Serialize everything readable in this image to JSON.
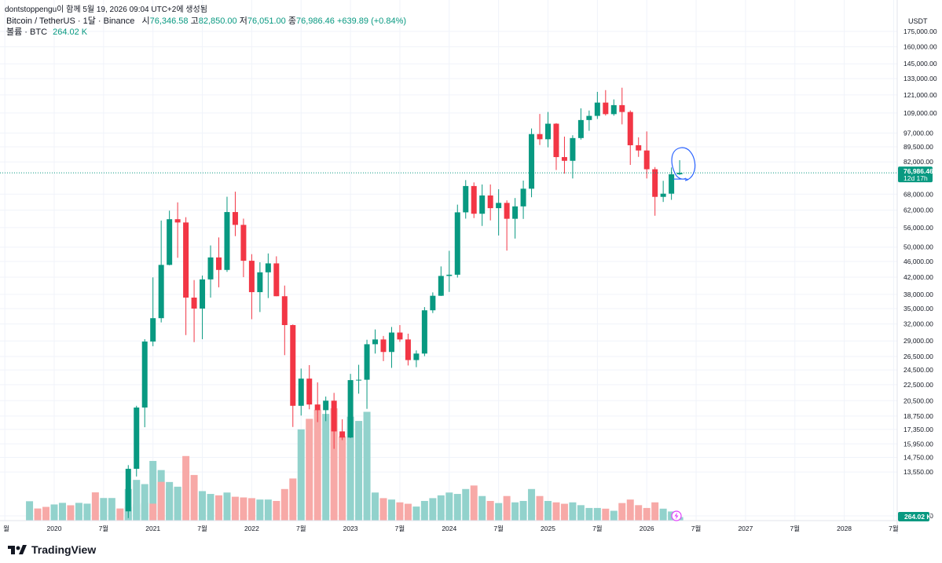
{
  "header": {
    "published": "dontstoppengu이 함께 5월 19, 2026 09:04 UTC+2에 생성됨",
    "symbol": "Bitcoin / TetherUS · 1달 · Binance",
    "o_label": "시",
    "o": "76,346.58",
    "h_label": "고",
    "h": "82,850.00",
    "l_label": "저",
    "l": "76,051.00",
    "c_label": "종",
    "c": "76,986.46",
    "change": "+639.89 (+0.84%)",
    "volume_label": "볼륨 · BTC",
    "volume_value": "264.02 K"
  },
  "price_axis": {
    "currency": "USDT",
    "current_price": "76,986.46",
    "countdown": "12d 17h",
    "volume_tag": "264.02 K"
  },
  "footer": {
    "brand": "TradingView"
  },
  "colors": {
    "up": "#089981",
    "down": "#f23645",
    "up_vol": "#92d2cc",
    "down_vol": "#f7a9a7",
    "annotation": "#2962ff"
  },
  "chart_data": {
    "type": "candlestick",
    "scale": "log",
    "y_ticks": [
      10500,
      13550,
      14750,
      15950,
      17350,
      18750,
      20500,
      22500,
      24500,
      26500,
      29000,
      32000,
      35000,
      38000,
      42000,
      46000,
      50000,
      56000,
      62000,
      68000,
      76986.46,
      82000,
      89500,
      97000,
      109000,
      121000,
      133000,
      145000,
      160000,
      175000
    ],
    "y_tick_labels": [
      "10,500.00",
      "13,550.00",
      "14,750.00",
      "15,950.00",
      "17,350.00",
      "18,750.00",
      "20,500.00",
      "22,500.00",
      "24,500.00",
      "26,500.00",
      "29,000.00",
      "32,000.00",
      "35,000.00",
      "38,000.00",
      "42,000.00",
      "46,000.00",
      "50,000.00",
      "56,000.00",
      "62,000.00",
      "68,000.00",
      "",
      "82,000.00",
      "89,500.00",
      "97,000.00",
      "109,000.00",
      "121,000.00",
      "133,000.00",
      "145,000.00",
      "160,000.00",
      "175,000.00"
    ],
    "x_labels": [
      {
        "label": "월",
        "date": "2019-07"
      },
      {
        "label": "2020",
        "date": "2020-01"
      },
      {
        "label": "7월",
        "date": "2020-07"
      },
      {
        "label": "2021",
        "date": "2021-01"
      },
      {
        "label": "7월",
        "date": "2021-07"
      },
      {
        "label": "2022",
        "date": "2022-01"
      },
      {
        "label": "7월",
        "date": "2022-07"
      },
      {
        "label": "2023",
        "date": "2023-01"
      },
      {
        "label": "7월",
        "date": "2023-07"
      },
      {
        "label": "2024",
        "date": "2024-01"
      },
      {
        "label": "7월",
        "date": "2024-07"
      },
      {
        "label": "2025",
        "date": "2025-01"
      },
      {
        "label": "7월",
        "date": "2025-07"
      },
      {
        "label": "2026",
        "date": "2026-01"
      },
      {
        "label": "7월",
        "date": "2026-07"
      },
      {
        "label": "2027",
        "date": "2027-01"
      },
      {
        "label": "7월",
        "date": "2027-07"
      },
      {
        "label": "2028",
        "date": "2028-01"
      },
      {
        "label": "7월",
        "date": "2028-07"
      }
    ],
    "candles": [
      {
        "d": "2020-10",
        "o": 10780,
        "h": 14100,
        "l": 10370,
        "c": 13800,
        "v": 0.45
      },
      {
        "d": "2020-11",
        "o": 13800,
        "h": 19900,
        "l": 13200,
        "c": 19700,
        "v": 0.58
      },
      {
        "d": "2020-12",
        "o": 19700,
        "h": 29300,
        "l": 17570,
        "c": 28900,
        "v": 0.52
      },
      {
        "d": "2021-01",
        "o": 28900,
        "h": 41950,
        "l": 28130,
        "c": 33100,
        "v": 0.85
      },
      {
        "d": "2021-02",
        "o": 33100,
        "h": 58350,
        "l": 32300,
        "c": 45100,
        "v": 0.72
      },
      {
        "d": "2021-03",
        "o": 45100,
        "h": 61800,
        "l": 45000,
        "c": 58800,
        "v": 0.55
      },
      {
        "d": "2021-04",
        "o": 58800,
        "h": 64850,
        "l": 47000,
        "c": 57700,
        "v": 0.48
      },
      {
        "d": "2021-05",
        "o": 57700,
        "h": 59500,
        "l": 30000,
        "c": 37300,
        "v": 0.92
      },
      {
        "d": "2021-06",
        "o": 37300,
        "h": 41300,
        "l": 28800,
        "c": 35000,
        "v": 0.65
      },
      {
        "d": "2021-07",
        "o": 35000,
        "h": 42400,
        "l": 29300,
        "c": 41460,
        "v": 0.42
      },
      {
        "d": "2021-08",
        "o": 41460,
        "h": 50500,
        "l": 37300,
        "c": 47100,
        "v": 0.38
      },
      {
        "d": "2021-09",
        "o": 47100,
        "h": 52900,
        "l": 39600,
        "c": 43800,
        "v": 0.36
      },
      {
        "d": "2021-10",
        "o": 43800,
        "h": 67000,
        "l": 43300,
        "c": 61300,
        "v": 0.4
      },
      {
        "d": "2021-11",
        "o": 61300,
        "h": 69000,
        "l": 53300,
        "c": 56900,
        "v": 0.34
      },
      {
        "d": "2021-12",
        "o": 56900,
        "h": 59000,
        "l": 42000,
        "c": 46200,
        "v": 0.33
      },
      {
        "d": "2022-01",
        "o": 46200,
        "h": 48000,
        "l": 32900,
        "c": 38500,
        "v": 0.32
      },
      {
        "d": "2022-02",
        "o": 38500,
        "h": 45800,
        "l": 34300,
        "c": 43200,
        "v": 0.3
      },
      {
        "d": "2022-03",
        "o": 43200,
        "h": 48200,
        "l": 37200,
        "c": 45500,
        "v": 0.3
      },
      {
        "d": "2022-04",
        "o": 45500,
        "h": 47400,
        "l": 37600,
        "c": 37600,
        "v": 0.28
      },
      {
        "d": "2022-05",
        "o": 37600,
        "h": 40000,
        "l": 26700,
        "c": 31800,
        "v": 0.45
      },
      {
        "d": "2022-06",
        "o": 31800,
        "h": 31900,
        "l": 17600,
        "c": 19900,
        "v": 0.6
      },
      {
        "d": "2022-07",
        "o": 19900,
        "h": 24700,
        "l": 18800,
        "c": 23300,
        "v": 1.3
      },
      {
        "d": "2022-08",
        "o": 23300,
        "h": 25200,
        "l": 19500,
        "c": 20050,
        "v": 1.45
      },
      {
        "d": "2022-09",
        "o": 20050,
        "h": 22800,
        "l": 18100,
        "c": 19400,
        "v": 1.58
      },
      {
        "d": "2022-10",
        "o": 19400,
        "h": 21000,
        "l": 18200,
        "c": 20500,
        "v": 1.52
      },
      {
        "d": "2022-11",
        "o": 20500,
        "h": 21450,
        "l": 15500,
        "c": 17150,
        "v": 1.6
      },
      {
        "d": "2022-12",
        "o": 17150,
        "h": 18400,
        "l": 16300,
        "c": 16550,
        "v": 1.2
      },
      {
        "d": "2023-01",
        "o": 16550,
        "h": 23950,
        "l": 16500,
        "c": 23100,
        "v": 1.48
      },
      {
        "d": "2023-02",
        "o": 23100,
        "h": 25250,
        "l": 21350,
        "c": 23150,
        "v": 1.42
      },
      {
        "d": "2023-03",
        "o": 23150,
        "h": 29200,
        "l": 19550,
        "c": 28450,
        "v": 1.55
      },
      {
        "d": "2023-04",
        "o": 28450,
        "h": 31000,
        "l": 26950,
        "c": 29250,
        "v": 0.4
      },
      {
        "d": "2023-05",
        "o": 29250,
        "h": 29850,
        "l": 25800,
        "c": 27200,
        "v": 0.32
      },
      {
        "d": "2023-06",
        "o": 27200,
        "h": 31450,
        "l": 24800,
        "c": 30450,
        "v": 0.3
      },
      {
        "d": "2023-07",
        "o": 30450,
        "h": 31800,
        "l": 28850,
        "c": 29250,
        "v": 0.26
      },
      {
        "d": "2023-08",
        "o": 29250,
        "h": 30250,
        "l": 25150,
        "c": 25950,
        "v": 0.24
      },
      {
        "d": "2023-09",
        "o": 25950,
        "h": 27450,
        "l": 24900,
        "c": 26950,
        "v": 0.2
      },
      {
        "d": "2023-10",
        "o": 26950,
        "h": 35300,
        "l": 26550,
        "c": 34650,
        "v": 0.28
      },
      {
        "d": "2023-11",
        "o": 34650,
        "h": 38450,
        "l": 34100,
        "c": 37700,
        "v": 0.32
      },
      {
        "d": "2023-12",
        "o": 37700,
        "h": 44700,
        "l": 37650,
        "c": 42300,
        "v": 0.36
      },
      {
        "d": "2024-01",
        "o": 42300,
        "h": 48950,
        "l": 38550,
        "c": 42600,
        "v": 0.4
      },
      {
        "d": "2024-02",
        "o": 42600,
        "h": 64000,
        "l": 41900,
        "c": 61200,
        "v": 0.38
      },
      {
        "d": "2024-03",
        "o": 61200,
        "h": 73800,
        "l": 59000,
        "c": 71300,
        "v": 0.45
      },
      {
        "d": "2024-04",
        "o": 71300,
        "h": 72800,
        "l": 59200,
        "c": 60700,
        "v": 0.5
      },
      {
        "d": "2024-05",
        "o": 60700,
        "h": 71950,
        "l": 56550,
        "c": 67500,
        "v": 0.35
      },
      {
        "d": "2024-06",
        "o": 67500,
        "h": 71950,
        "l": 58400,
        "c": 62700,
        "v": 0.28
      },
      {
        "d": "2024-07",
        "o": 62700,
        "h": 70000,
        "l": 53500,
        "c": 64650,
        "v": 0.25
      },
      {
        "d": "2024-08",
        "o": 64650,
        "h": 65600,
        "l": 49000,
        "c": 58950,
        "v": 0.35
      },
      {
        "d": "2024-09",
        "o": 58950,
        "h": 66500,
        "l": 52550,
        "c": 63350,
        "v": 0.26
      },
      {
        "d": "2024-10",
        "o": 63350,
        "h": 73600,
        "l": 58900,
        "c": 70200,
        "v": 0.28
      },
      {
        "d": "2024-11",
        "o": 70200,
        "h": 99600,
        "l": 66800,
        "c": 96400,
        "v": 0.45
      },
      {
        "d": "2024-12",
        "o": 96400,
        "h": 108350,
        "l": 90500,
        "c": 93550,
        "v": 0.35
      },
      {
        "d": "2025-01",
        "o": 93550,
        "h": 109600,
        "l": 89250,
        "c": 102400,
        "v": 0.28
      },
      {
        "d": "2025-02",
        "o": 102400,
        "h": 102750,
        "l": 78250,
        "c": 84350,
        "v": 0.26
      },
      {
        "d": "2025-03",
        "o": 84350,
        "h": 95000,
        "l": 76600,
        "c": 82550,
        "v": 0.24
      },
      {
        "d": "2025-04",
        "o": 82550,
        "h": 95750,
        "l": 74500,
        "c": 94200,
        "v": 0.26
      },
      {
        "d": "2025-05",
        "o": 94200,
        "h": 111950,
        "l": 93350,
        "c": 104600,
        "v": 0.22
      },
      {
        "d": "2025-06",
        "o": 104600,
        "h": 110550,
        "l": 98250,
        "c": 107150,
        "v": 0.18
      },
      {
        "d": "2025-07",
        "o": 107150,
        "h": 123200,
        "l": 105250,
        "c": 115750,
        "v": 0.18
      },
      {
        "d": "2025-08",
        "o": 115750,
        "h": 124450,
        "l": 107350,
        "c": 108250,
        "v": 0.17
      },
      {
        "d": "2025-09",
        "o": 108250,
        "h": 117900,
        "l": 107250,
        "c": 114050,
        "v": 0.14
      },
      {
        "d": "2025-10",
        "o": 114050,
        "h": 126200,
        "l": 102000,
        "c": 109600,
        "v": 0.25
      },
      {
        "d": "2025-11",
        "o": 109600,
        "h": 110600,
        "l": 80600,
        "c": 90350,
        "v": 0.3
      },
      {
        "d": "2025-12",
        "o": 90350,
        "h": 94600,
        "l": 84450,
        "c": 87650,
        "v": 0.22
      },
      {
        "d": "2026-01",
        "o": 87650,
        "h": 97900,
        "l": 74500,
        "c": 78600,
        "v": 0.18
      },
      {
        "d": "2026-02",
        "o": 78600,
        "h": 79600,
        "l": 60000,
        "c": 66950,
        "v": 0.26
      },
      {
        "d": "2026-03",
        "o": 66950,
        "h": 73500,
        "l": 65000,
        "c": 68200,
        "v": 0.17
      },
      {
        "d": "2026-04",
        "o": 68200,
        "h": 79400,
        "l": 65800,
        "c": 76350,
        "v": 0.13
      },
      {
        "d": "2026-05",
        "o": 76346.58,
        "h": 82850,
        "l": 76051,
        "c": 76986.46,
        "v": 0.05
      }
    ]
  }
}
